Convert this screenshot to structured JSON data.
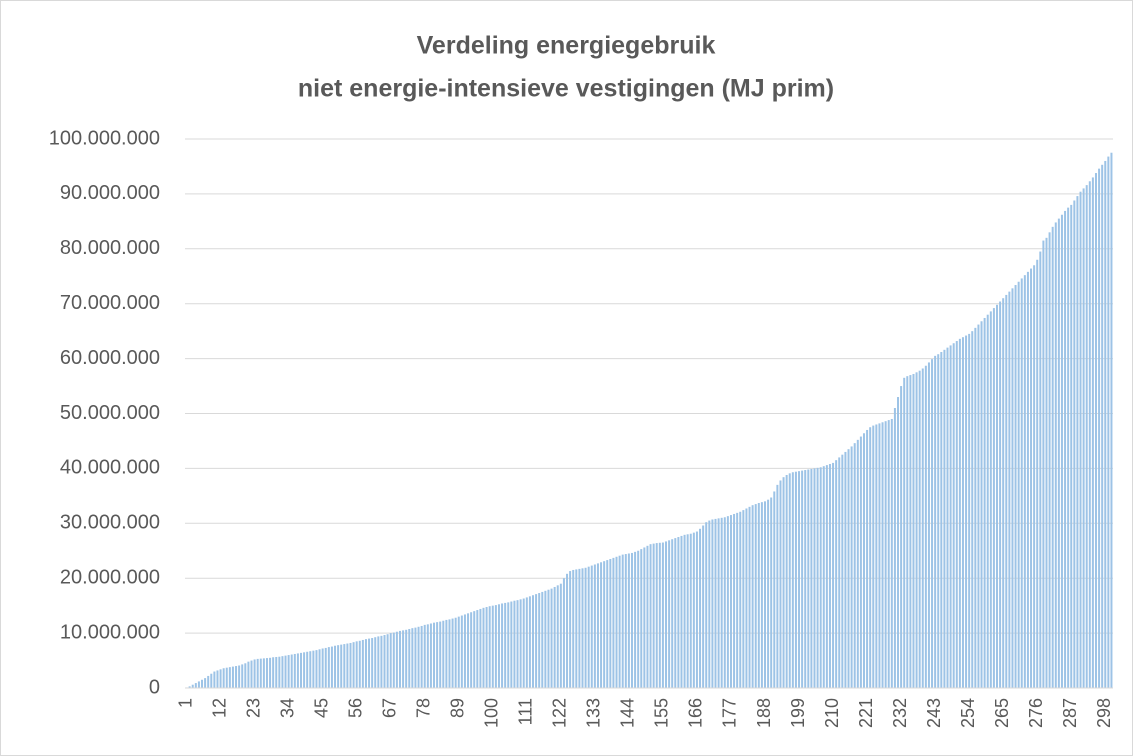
{
  "chart_data": {
    "type": "bar",
    "title": [
      "Verdeling energiegebruik",
      "niet energie-intensieve vestigingen (MJ prim)"
    ],
    "color": "#9dc3e6",
    "grid": true,
    "ylim": [
      0,
      100000000
    ],
    "yticks": [
      0,
      {
        "value": 10000000,
        "label": "10.000.000"
      },
      {
        "value": 20000000,
        "label": "20.000.000"
      },
      {
        "value": 30000000,
        "label": "30.000.000"
      },
      {
        "value": 40000000,
        "label": "40.000.000"
      },
      {
        "value": 50000000,
        "label": "50.000.000"
      },
      {
        "value": 60000000,
        "label": "60.000.000"
      },
      {
        "value": 70000000,
        "label": "70.000.000"
      },
      {
        "value": 80000000,
        "label": "80.000.000"
      },
      {
        "value": 90000000,
        "label": "90.000.000"
      },
      {
        "value": 100000000,
        "label": "100.000.000"
      }
    ],
    "categories": [
      "1",
      null,
      null,
      null,
      null,
      null,
      null,
      null,
      null,
      null,
      null,
      "12",
      null,
      null,
      null,
      null,
      null,
      null,
      null,
      null,
      null,
      null,
      "23",
      null,
      null,
      null,
      null,
      null,
      null,
      null,
      null,
      null,
      null,
      "34",
      null,
      null,
      null,
      null,
      null,
      null,
      null,
      null,
      null,
      null,
      "45",
      null,
      null,
      null,
      null,
      null,
      null,
      null,
      null,
      null,
      null,
      "56",
      null,
      null,
      null,
      null,
      null,
      null,
      null,
      null,
      null,
      null,
      "67",
      null,
      null,
      null,
      null,
      null,
      null,
      null,
      null,
      null,
      null,
      "78",
      null,
      null,
      null,
      null,
      null,
      null,
      null,
      null,
      null,
      null,
      "89",
      null,
      null,
      null,
      null,
      null,
      null,
      null,
      null,
      null,
      null,
      "100",
      null,
      null,
      null,
      null,
      null,
      null,
      null,
      null,
      null,
      null,
      "111",
      null,
      null,
      null,
      null,
      null,
      null,
      null,
      null,
      null,
      null,
      "122",
      null,
      null,
      null,
      null,
      null,
      null,
      null,
      null,
      null,
      null,
      "133",
      null,
      null,
      null,
      null,
      null,
      null,
      null,
      null,
      null,
      null,
      "144",
      null,
      null,
      null,
      null,
      null,
      null,
      null,
      null,
      null,
      null,
      "155",
      null,
      null,
      null,
      null,
      null,
      null,
      null,
      null,
      null,
      null,
      "166",
      null,
      null,
      null,
      null,
      null,
      null,
      null,
      null,
      null,
      null,
      "177",
      null,
      null,
      null,
      null,
      null,
      null,
      null,
      null,
      null,
      null,
      "188",
      null,
      null,
      null,
      null,
      null,
      null,
      null,
      null,
      null,
      null,
      "199",
      null,
      null,
      null,
      null,
      null,
      null,
      null,
      null,
      null,
      null,
      "210",
      null,
      null,
      null,
      null,
      null,
      null,
      null,
      null,
      null,
      null,
      "221",
      null,
      null,
      null,
      null,
      null,
      null,
      null,
      null,
      null,
      null,
      "232",
      null,
      null,
      null,
      null,
      null,
      null,
      null,
      null,
      null,
      null,
      "243",
      null,
      null,
      null,
      null,
      null,
      null,
      null,
      null,
      null,
      null,
      "254",
      null,
      null,
      null,
      null,
      null,
      null,
      null,
      null,
      null,
      null,
      "265",
      null,
      null,
      null,
      null,
      null,
      null,
      null,
      null,
      null,
      null,
      "276",
      null,
      null,
      null,
      null,
      null,
      null,
      null,
      null,
      null,
      null,
      "287",
      null,
      null,
      null,
      null,
      null,
      null,
      null,
      null,
      null,
      null,
      "298",
      null,
      null
    ],
    "values": [
      100000,
      300000,
      600000,
      900000,
      1200000,
      1500000,
      1800000,
      2200000,
      2600000,
      3000000,
      3200000,
      3400000,
      3600000,
      3700000,
      3800000,
      3900000,
      4000000,
      4100000,
      4300000,
      4500000,
      4800000,
      5000000,
      5200000,
      5300000,
      5350000,
      5400000,
      5450000,
      5500000,
      5600000,
      5650000,
      5700000,
      5800000,
      5900000,
      6000000,
      6100000,
      6200000,
      6300000,
      6400000,
      6500000,
      6600000,
      6700000,
      6800000,
      6900000,
      7050000,
      7200000,
      7300000,
      7450000,
      7550000,
      7700000,
      7800000,
      7900000,
      8000000,
      8100000,
      8200000,
      8350000,
      8500000,
      8600000,
      8750000,
      8900000,
      9000000,
      9100000,
      9250000,
      9400000,
      9500000,
      9650000,
      9800000,
      10000000,
      10100000,
      10250000,
      10400000,
      10500000,
      10600000,
      10750000,
      10900000,
      11000000,
      11150000,
      11300000,
      11500000,
      11600000,
      11750000,
      11900000,
      12000000,
      12100000,
      12250000,
      12400000,
      12500000,
      12650000,
      12800000,
      13000000,
      13200000,
      13400000,
      13600000,
      13800000,
      14000000,
      14200000,
      14400000,
      14600000,
      14750000,
      14900000,
      15000000,
      15100000,
      15250000,
      15400000,
      15500000,
      15600000,
      15750000,
      15900000,
      16000000,
      16150000,
      16300000,
      16500000,
      16700000,
      16900000,
      17100000,
      17300000,
      17500000,
      17700000,
      17900000,
      18100000,
      18400000,
      18700000,
      19000000,
      20000000,
      20800000,
      21300000,
      21500000,
      21600000,
      21700000,
      21800000,
      21900000,
      22100000,
      22300000,
      22500000,
      22700000,
      22900000,
      23100000,
      23300000,
      23500000,
      23700000,
      23900000,
      24100000,
      24300000,
      24400000,
      24500000,
      24600000,
      24800000,
      25000000,
      25300000,
      25600000,
      25900000,
      26200000,
      26300000,
      26400000,
      26450000,
      26500000,
      26700000,
      26900000,
      27100000,
      27300000,
      27500000,
      27700000,
      27900000,
      28000000,
      28100000,
      28300000,
      28500000,
      29000000,
      29600000,
      30200000,
      30500000,
      30700000,
      30800000,
      30900000,
      31000000,
      31100000,
      31300000,
      31500000,
      31700000,
      31900000,
      32100000,
      32400000,
      32700000,
      33000000,
      33300000,
      33500000,
      33700000,
      33850000,
      34000000,
      34300000,
      34700000,
      35800000,
      37000000,
      37800000,
      38400000,
      38800000,
      39100000,
      39300000,
      39400000,
      39500000,
      39600000,
      39700000,
      39800000,
      39900000,
      40000000,
      40100000,
      40200000,
      40400000,
      40600000,
      40800000,
      41000000,
      41500000,
      42000000,
      42500000,
      43000000,
      43500000,
      44000000,
      44600000,
      45200000,
      45800000,
      46400000,
      47000000,
      47500000,
      47800000,
      48000000,
      48200000,
      48400000,
      48600000,
      48800000,
      49000000,
      51000000,
      53000000,
      55000000,
      56500000,
      56800000,
      57000000,
      57200000,
      57500000,
      57800000,
      58200000,
      58700000,
      59300000,
      59900000,
      60500000,
      60800000,
      61200000,
      61600000,
      62000000,
      62400000,
      62800000,
      63200000,
      63600000,
      63900000,
      64200000,
      64500000,
      65000000,
      65600000,
      66200000,
      66800000,
      67400000,
      68000000,
      68600000,
      69200000,
      69800000,
      70400000,
      71000000,
      71600000,
      72200000,
      72800000,
      73400000,
      74000000,
      74600000,
      75200000,
      75800000,
      76400000,
      77000000,
      78000000,
      79500000,
      81500000,
      82000000,
      83000000,
      84000000,
      84800000,
      85500000,
      86200000,
      86900000,
      87500000,
      88000000,
      88800000,
      89600000,
      90400000,
      91000000,
      91600000,
      92300000,
      93000000,
      93800000,
      94600000,
      95300000,
      96000000,
      96800000,
      97500000
    ]
  }
}
